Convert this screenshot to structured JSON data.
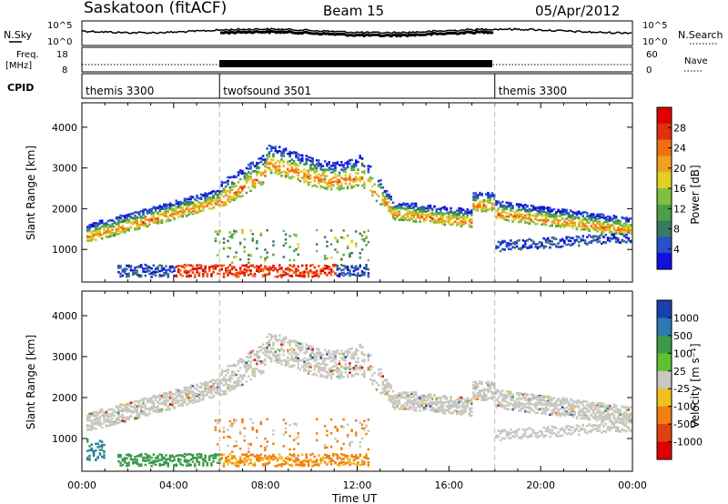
{
  "header": {
    "title": "Saskatoon (fitACF)",
    "beam": "Beam 15",
    "date": "05/Apr/2012"
  },
  "strip_labels": {
    "nsky": "N.Sky",
    "nsky_ticks": [
      "10^5",
      "10^0"
    ],
    "nsearch": "N.Search",
    "nsearch_ticks": [
      "10^5",
      "10^0"
    ],
    "freq_line1": "Freq.",
    "freq_line2": "[MHz]",
    "freq_ticks": [
      "18",
      "8"
    ],
    "nave": "Nave",
    "nave_ticks": [
      "60",
      "0"
    ],
    "cpid": "CPID"
  },
  "cpid_segments": [
    {
      "label": "themis 3300",
      "start_h": 0,
      "end_h": 6
    },
    {
      "label": "twofsound 3501",
      "start_h": 6,
      "end_h": 18
    },
    {
      "label": "themis 3300",
      "start_h": 18,
      "end_h": 24
    }
  ],
  "chart_data": [
    {
      "type": "heatmap",
      "panel": "power",
      "ylabel": "Slant Range [km]",
      "y_ticks": [
        1000,
        2000,
        3000,
        4000
      ],
      "ylim": [
        200,
        4600
      ],
      "xlim": [
        0,
        24
      ],
      "colorbar_label": "Power [dB]",
      "colorbar_ticks": [
        4,
        8,
        12,
        16,
        20,
        24,
        28
      ],
      "colorbar_range": [
        0,
        32
      ],
      "colors": [
        "#1010e0",
        "#2850c8",
        "#3a7a60",
        "#4aa048",
        "#80c040",
        "#e0d020",
        "#f0a020",
        "#f07010",
        "#e03010",
        "#e00000"
      ]
    },
    {
      "type": "heatmap",
      "panel": "velocity",
      "ylabel": "Slant Range [km]",
      "y_ticks": [
        1000,
        2000,
        3000,
        4000
      ],
      "ylim": [
        200,
        4600
      ],
      "xlim": [
        0,
        24
      ],
      "xlabel": "Time UT",
      "x_ticks": [
        "00:00",
        "04:00",
        "08:00",
        "12:00",
        "16:00",
        "20:00",
        "00:00"
      ],
      "colorbar_label": "Velocity [m s⁻¹]",
      "colorbar_ticks": [
        "1000",
        "500",
        "100",
        "25",
        "-25",
        "-100",
        "-500",
        "-1000"
      ],
      "colors": [
        "#1840b0",
        "#2a7ab0",
        "#3a9a4a",
        "#60c030",
        "#c8c8c0",
        "#f0c020",
        "#f08010",
        "#e04010",
        "#e00000"
      ]
    }
  ]
}
